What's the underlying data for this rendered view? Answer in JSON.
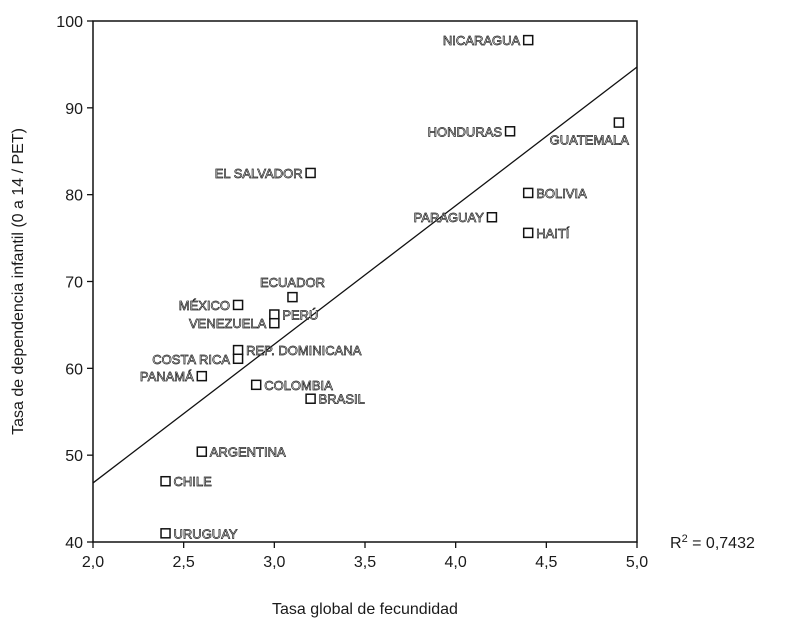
{
  "chart_data": {
    "type": "scatter",
    "xlabel": "Tasa global de fecundidad",
    "ylabel": "Tasa de dependencia infantil (0 a 14 / PET)",
    "xlim": [
      2.0,
      5.0
    ],
    "ylim": [
      40,
      100
    ],
    "x_ticks": [
      "2,0",
      "2,5",
      "3,0",
      "3,5",
      "4,0",
      "4,5",
      "5,0"
    ],
    "y_ticks": [
      "40",
      "50",
      "60",
      "70",
      "80",
      "90",
      "100"
    ],
    "grid": false,
    "legend": "none",
    "trendline": {
      "x": [
        2.0,
        5.0
      ],
      "y": [
        46.8,
        94.7
      ]
    },
    "r2_prefix": "R",
    "r2_sup": "2",
    "r2_value": " = 0,7432",
    "points": [
      {
        "label": "NICARAGUA",
        "x": 4.4,
        "y": 97.8,
        "side": "left"
      },
      {
        "label": "GUATEMALA",
        "x": 4.9,
        "y": 88.3,
        "side": "below-left"
      },
      {
        "label": "HONDURAS",
        "x": 4.3,
        "y": 87.3,
        "side": "left"
      },
      {
        "label": "EL SALVADOR",
        "x": 3.2,
        "y": 82.5,
        "side": "left"
      },
      {
        "label": "BOLIVIA",
        "x": 4.4,
        "y": 80.2,
        "side": "right"
      },
      {
        "label": "PARAGUAY",
        "x": 4.2,
        "y": 77.4,
        "side": "left"
      },
      {
        "label": "HAITÍ",
        "x": 4.4,
        "y": 75.6,
        "side": "right"
      },
      {
        "label": "ECUADOR",
        "x": 3.1,
        "y": 68.2,
        "side": "above"
      },
      {
        "label": "MÉXICO",
        "x": 2.8,
        "y": 67.3,
        "side": "left"
      },
      {
        "label": "PERÚ",
        "x": 3.0,
        "y": 66.2,
        "side": "right"
      },
      {
        "label": "VENEZUELA",
        "x": 3.0,
        "y": 65.2,
        "side": "left"
      },
      {
        "label": "REP. DOMINICANA",
        "x": 2.8,
        "y": 62.1,
        "side": "right"
      },
      {
        "label": "COSTA RICA",
        "x": 2.8,
        "y": 61.1,
        "side": "left"
      },
      {
        "label": "PANAMÁ",
        "x": 2.6,
        "y": 59.1,
        "side": "left"
      },
      {
        "label": "COLOMBIA",
        "x": 2.9,
        "y": 58.1,
        "side": "right"
      },
      {
        "label": "BRASIL",
        "x": 3.2,
        "y": 56.5,
        "side": "right"
      },
      {
        "label": "ARGENTINA",
        "x": 2.6,
        "y": 50.4,
        "side": "right"
      },
      {
        "label": "CHILE",
        "x": 2.4,
        "y": 47.0,
        "side": "right"
      },
      {
        "label": "URUGUAY",
        "x": 2.4,
        "y": 41.0,
        "side": "right"
      }
    ]
  }
}
